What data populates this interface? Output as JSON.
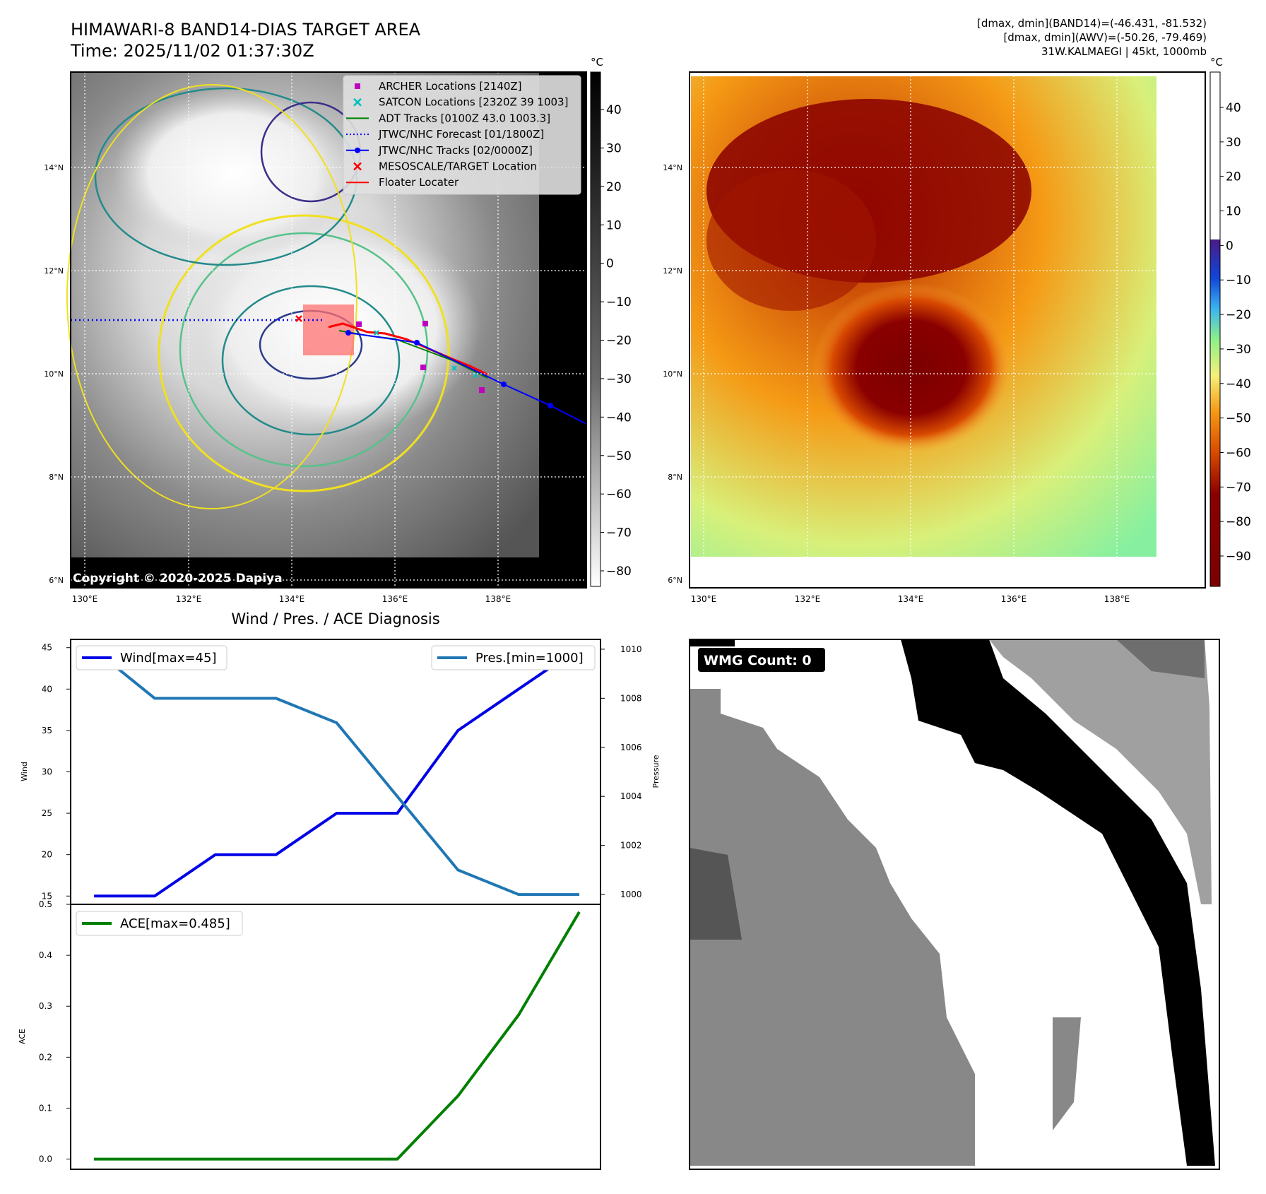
{
  "header": {
    "title": "HIMAWARI-8 BAND14-DIAS TARGET AREA",
    "time": "Time: 2025/11/02 01:37:30Z",
    "info_line1": "[dmax, dmin](BAND14)=(-46.431, -81.532)",
    "info_line2": "[dmax, dmin](AWV)=(-50.26, -79.469)",
    "info_line3": "31W.KALMAEGI | 45kt, 1000mb"
  },
  "map": {
    "lat_ticks": [
      "14°N",
      "12°N",
      "10°N",
      "8°N",
      "6°N"
    ],
    "lon_ticks": [
      "130°E",
      "132°E",
      "134°E",
      "136°E",
      "138°E"
    ],
    "copyright": "Copyright © 2020-2025 Dapiya",
    "unit": "°C",
    "legend": [
      {
        "label": "ARCHER Locations [2140Z]",
        "color": "#bf00bf",
        "marker": "square"
      },
      {
        "label": "SATCON Locations [2320Z 39 1003]",
        "color": "#00bfbf",
        "marker": "x"
      },
      {
        "label": "ADT Tracks [0100Z 43.0 1003.3]",
        "color": "#008000",
        "marker": "line"
      },
      {
        "label": "JTWC/NHC Forecast [01/1800Z]",
        "color": "#0000ff",
        "marker": "dotted"
      },
      {
        "label": "JTWC/NHC Tracks [02/0000Z]",
        "color": "#0000ff",
        "marker": "line-dot"
      },
      {
        "label": "MESOSCALE/TARGET Location",
        "color": "#ff0000",
        "marker": "x"
      },
      {
        "label": "Floater Locater",
        "color": "#ff0000",
        "marker": "line"
      }
    ],
    "gray_colorbar_ticks": [
      "40",
      "30",
      "20",
      "10",
      "0",
      "−10",
      "−20",
      "−30",
      "−40",
      "−50",
      "−60",
      "−70",
      "−80"
    ],
    "color_colorbar_ticks": [
      "40",
      "30",
      "20",
      "10",
      "0",
      "−10",
      "−20",
      "−30",
      "−40",
      "−50",
      "−60",
      "−70",
      "−80",
      "−90"
    ]
  },
  "wmg": {
    "label": "WMG Count: 0"
  },
  "chart_data": [
    {
      "type": "line",
      "title": "Wind / Pres. / ACE Diagnosis",
      "x": [
        0,
        1,
        2,
        3,
        4,
        5,
        6,
        7,
        8
      ],
      "series": [
        {
          "name": "Wind[max=45]",
          "axis": "left",
          "values": [
            15,
            15,
            20,
            20,
            25,
            25,
            35,
            40,
            45
          ],
          "color": "#0000e6"
        },
        {
          "name": "Pres.[min=1000]",
          "axis": "right",
          "values": [
            1010,
            1008,
            1008,
            1008,
            1007,
            1004,
            1001,
            1000,
            1000
          ],
          "color": "#1f77b4"
        }
      ],
      "ylabel": "Wind",
      "y2label": "Pressure",
      "ylim": [
        14,
        46
      ],
      "y2lim": [
        999.6,
        1010.4
      ],
      "yticks": [
        15,
        20,
        25,
        30,
        35,
        40,
        45
      ],
      "y2ticks": [
        1000,
        1002,
        1004,
        1006,
        1008,
        1010
      ]
    },
    {
      "type": "line",
      "x": [
        0,
        1,
        2,
        3,
        4,
        5,
        6,
        7,
        8
      ],
      "series": [
        {
          "name": "ACE[max=0.485]",
          "values": [
            0,
            0,
            0,
            0,
            0,
            0,
            0.124,
            0.283,
            0.485
          ],
          "color": "#008000"
        }
      ],
      "ylabel": "ACE",
      "ylim": [
        -0.02,
        0.5
      ],
      "yticks": [
        "0.0",
        "0.1",
        "0.2",
        "0.3",
        "0.4",
        "0.5"
      ]
    }
  ]
}
